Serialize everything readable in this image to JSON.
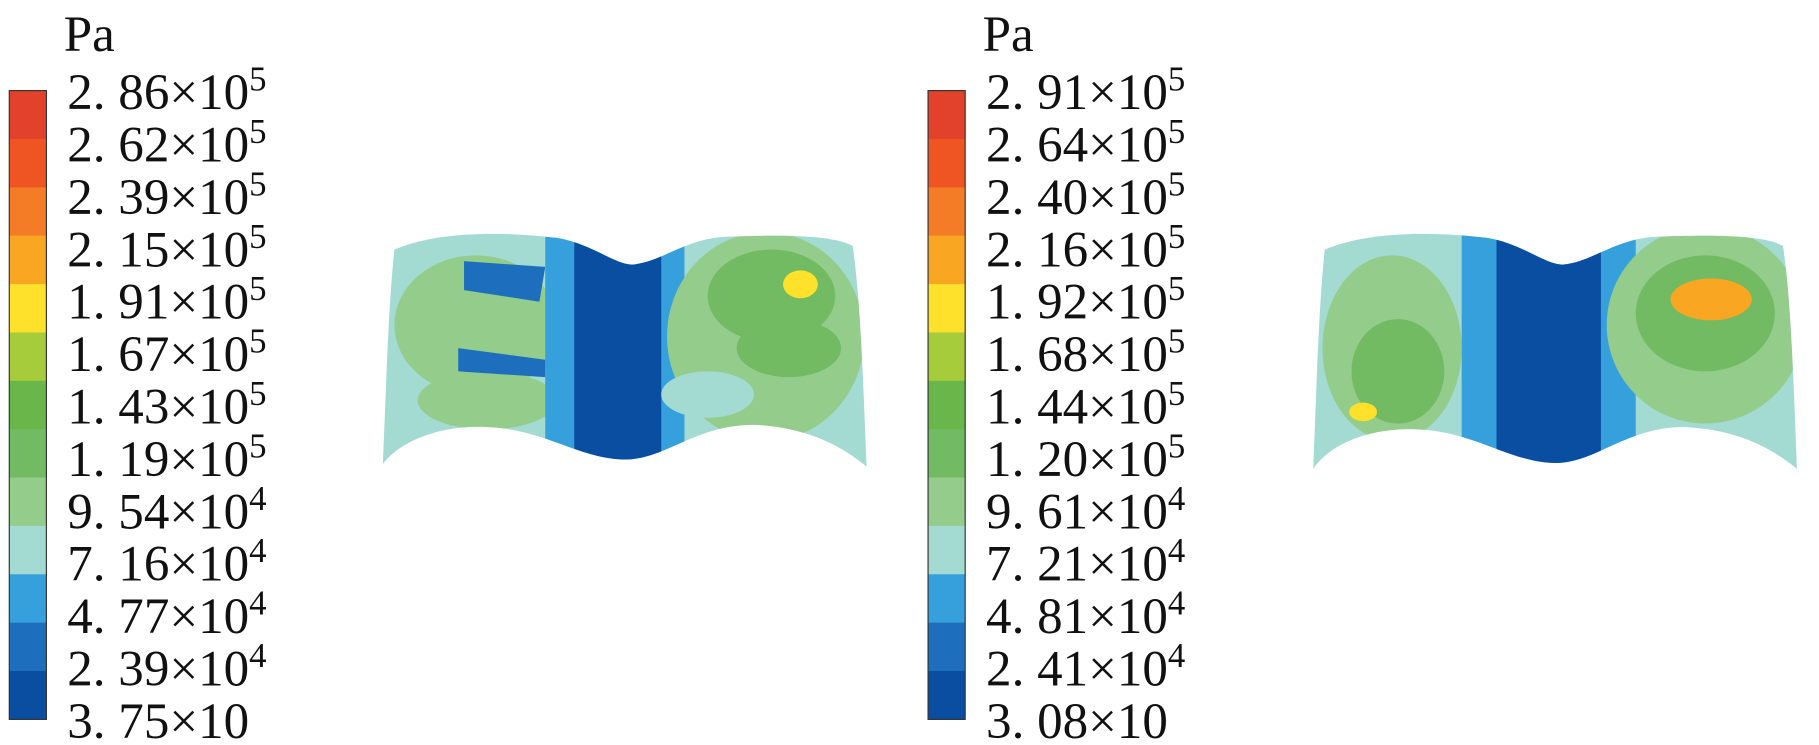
{
  "legend_colors": [
    "#e2412b",
    "#ef5423",
    "#f47c27",
    "#f9a723",
    "#fde12a",
    "#a6cc3c",
    "#6ab64a",
    "#72bb62",
    "#94cc8c",
    "#a3dad2",
    "#35a0dc",
    "#1d6fbe",
    "#0a4ea2"
  ],
  "panels": [
    {
      "unit": "Pa",
      "legend": [
        {
          "text": "2. 86×10",
          "exp": "5"
        },
        {
          "text": "2. 62×10",
          "exp": "5"
        },
        {
          "text": "2. 39×10",
          "exp": "5"
        },
        {
          "text": "2. 15×10",
          "exp": "5"
        },
        {
          "text": "1. 91×10",
          "exp": "5"
        },
        {
          "text": "1. 67×10",
          "exp": "5"
        },
        {
          "text": "1. 43×10",
          "exp": "5"
        },
        {
          "text": "1. 19×10",
          "exp": "5"
        },
        {
          "text": "9. 54×10",
          "exp": "4"
        },
        {
          "text": "7. 16×10",
          "exp": "4"
        },
        {
          "text": "4. 77×10",
          "exp": "4"
        },
        {
          "text": "2. 39×10",
          "exp": "4"
        },
        {
          "text": "3. 75×10"
        }
      ]
    },
    {
      "unit": "Pa",
      "legend": [
        {
          "text": "2. 91×10",
          "exp": "5"
        },
        {
          "text": "2. 64×10",
          "exp": "5"
        },
        {
          "text": "2. 40×10",
          "exp": "5"
        },
        {
          "text": "2. 16×10",
          "exp": "5"
        },
        {
          "text": "1. 92×10",
          "exp": "5"
        },
        {
          "text": "1. 68×10",
          "exp": "5"
        },
        {
          "text": "1. 44×10",
          "exp": "5"
        },
        {
          "text": "1. 20×10",
          "exp": "5"
        },
        {
          "text": "9. 61×10",
          "exp": "4"
        },
        {
          "text": "7. 21×10",
          "exp": "4"
        },
        {
          "text": "4. 81×10",
          "exp": "4"
        },
        {
          "text": "2. 41×10",
          "exp": "4"
        },
        {
          "text": "3. 08×10"
        }
      ]
    }
  ]
}
